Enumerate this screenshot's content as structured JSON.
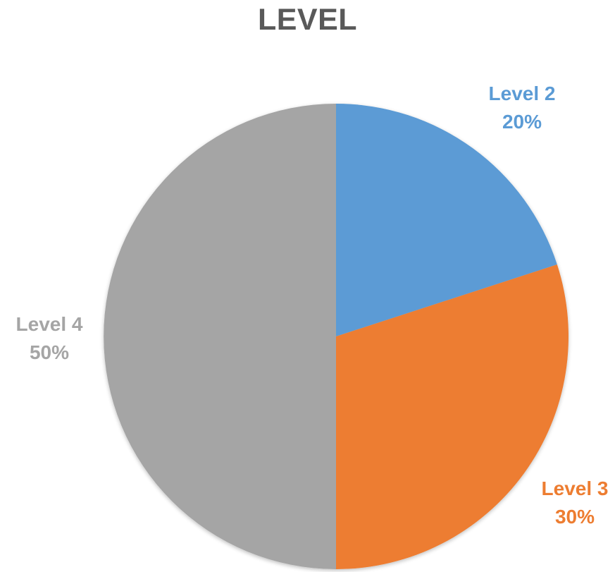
{
  "chart_data": {
    "type": "pie",
    "title": "LEVEL",
    "slices": [
      {
        "label": "Level 2",
        "value": 20,
        "display": "20%",
        "color": "#5B9BD5"
      },
      {
        "label": "Level 3",
        "value": 30,
        "display": "30%",
        "color": "#ED7D31"
      },
      {
        "label": "Level 4",
        "value": 50,
        "display": "50%",
        "color": "#A5A5A5"
      }
    ],
    "start_angle_deg": 0,
    "direction": "clockwise",
    "legend": "none",
    "data_labels": "outside"
  }
}
